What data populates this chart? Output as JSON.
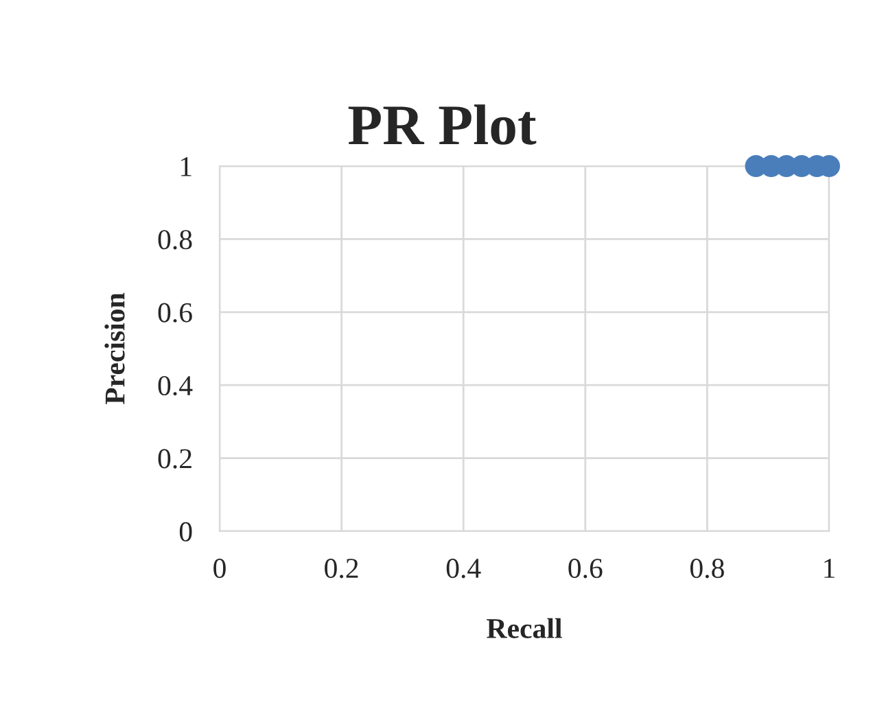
{
  "chart_data": {
    "type": "scatter",
    "title": "PR Plot",
    "xlabel": "Recall",
    "ylabel": "Precision",
    "x": [
      0.88,
      0.905,
      0.93,
      0.955,
      0.98,
      1.0
    ],
    "series": [
      {
        "color": "#4a7ebb",
        "values": [
          1,
          1,
          1,
          1,
          1,
          1
        ]
      }
    ],
    "xlim": [
      0,
      1
    ],
    "ylim": [
      0,
      1
    ],
    "xticks": [
      0,
      0.2,
      0.4,
      0.6,
      0.8,
      1
    ],
    "yticks": [
      0,
      0.2,
      0.4,
      0.6,
      0.8,
      1
    ],
    "grid": true,
    "marker": "circle"
  }
}
